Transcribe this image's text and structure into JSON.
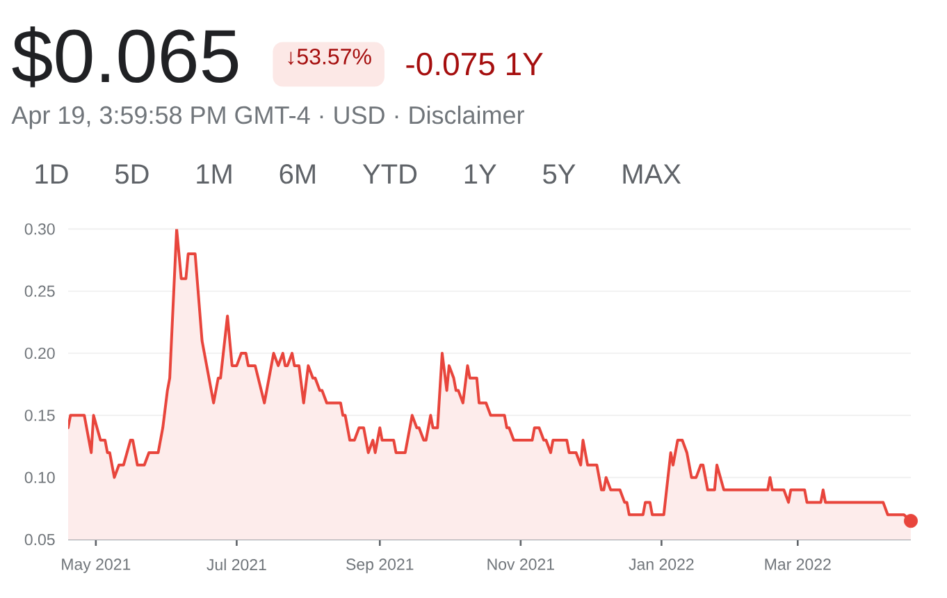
{
  "chart_data": {
    "type": "area",
    "title": "$0.065",
    "subtitle": "Apr 19, 3:59:58 PM GMT-4 · USD · Disclaimer",
    "annotations": [
      "↓53.57%",
      "-0.075 1Y",
      "1D",
      "5D",
      "1M",
      "6M",
      "YTD",
      "1Y",
      "5Y",
      "MAX"
    ],
    "xlim": [
      "2021-04-19",
      "2022-04-19"
    ],
    "xticks": [
      {
        "value": "2021-05-01",
        "label": "May 2021"
      },
      {
        "value": "2021-07-01",
        "label": "Jul 2021"
      },
      {
        "value": "2021-09-01",
        "label": "Sep 2021"
      },
      {
        "value": "2021-11-01",
        "label": "Nov 2021"
      },
      {
        "value": "2022-01-01",
        "label": "Jan 2022"
      },
      {
        "value": "2022-03-01",
        "label": "Mar 2022"
      }
    ],
    "ylim": [
      0.05,
      0.3
    ],
    "yticks": [
      0.05,
      {
        "value": 0.1,
        "label": "0.10"
      },
      0.15,
      {
        "value": 0.2,
        "label": "0.20"
      },
      0.25,
      {
        "value": 0.3,
        "label": "0.30"
      }
    ],
    "grid": "y",
    "series": [
      {
        "color": "#e8453c",
        "x": [
          "2021-04-19",
          "2021-04-20",
          "2021-04-26",
          "2021-04-29",
          "2021-04-30",
          "2021-05-03",
          "2021-05-05",
          "2021-05-06",
          "2021-05-07",
          "2021-05-09",
          "2021-05-11",
          "2021-05-13",
          "2021-05-16",
          "2021-05-17",
          "2021-05-19",
          "2021-05-22",
          "2021-05-24",
          "2021-05-28",
          "2021-05-30",
          "2021-06-01",
          "2021-06-02",
          "2021-06-05",
          "2021-06-07",
          "2021-06-09",
          "2021-06-10",
          "2021-06-13",
          "2021-06-16",
          "2021-06-18",
          "2021-06-21",
          "2021-06-23",
          "2021-06-24",
          "2021-06-27",
          "2021-06-29",
          "2021-07-01",
          "2021-07-03",
          "2021-07-05",
          "2021-07-06",
          "2021-07-09",
          "2021-07-13",
          "2021-07-17",
          "2021-07-19",
          "2021-07-21",
          "2021-07-22",
          "2021-07-23",
          "2021-07-25",
          "2021-07-26",
          "2021-07-28",
          "2021-07-30",
          "2021-08-01",
          "2021-08-03",
          "2021-08-04",
          "2021-08-06",
          "2021-08-07",
          "2021-08-09",
          "2021-08-15",
          "2021-08-16",
          "2021-08-17",
          "2021-08-19",
          "2021-08-21",
          "2021-08-23",
          "2021-08-25",
          "2021-08-27",
          "2021-08-29",
          "2021-08-30",
          "2021-09-01",
          "2021-09-02",
          "2021-09-07",
          "2021-09-08",
          "2021-09-12",
          "2021-09-15",
          "2021-09-17",
          "2021-09-18",
          "2021-09-20",
          "2021-09-21",
          "2021-09-23",
          "2021-09-24",
          "2021-09-26",
          "2021-09-28",
          "2021-09-30",
          "2021-10-01",
          "2021-10-03",
          "2021-10-04",
          "2021-10-05",
          "2021-10-07",
          "2021-10-09",
          "2021-10-10",
          "2021-10-13",
          "2021-10-14",
          "2021-10-17",
          "2021-10-19",
          "2021-10-25",
          "2021-10-26",
          "2021-10-27",
          "2021-10-29",
          "2021-11-06",
          "2021-11-07",
          "2021-11-09",
          "2021-11-11",
          "2021-11-12",
          "2021-11-14",
          "2021-11-15",
          "2021-11-21",
          "2021-11-22",
          "2021-11-25",
          "2021-11-27",
          "2021-11-28",
          "2021-11-30",
          "2021-12-04",
          "2021-12-06",
          "2021-12-07",
          "2021-12-08",
          "2021-12-10",
          "2021-12-14",
          "2021-12-16",
          "2021-12-17",
          "2021-12-18",
          "2021-12-24",
          "2021-12-25",
          "2021-12-27",
          "2021-12-28",
          "2022-01-02",
          "2022-01-05",
          "2022-01-06",
          "2022-01-08",
          "2022-01-10",
          "2022-01-12",
          "2022-01-14",
          "2022-01-16",
          "2022-01-18",
          "2022-01-19",
          "2022-01-21",
          "2022-01-24",
          "2022-01-25",
          "2022-01-28",
          "2022-02-16",
          "2022-02-17",
          "2022-02-18",
          "2022-02-23",
          "2022-02-25",
          "2022-02-26",
          "2022-03-04",
          "2022-03-05",
          "2022-03-11",
          "2022-03-12",
          "2022-03-13",
          "2022-04-07",
          "2022-04-09",
          "2022-04-16",
          "2022-04-19"
        ],
        "values": [
          0.14,
          0.15,
          0.15,
          0.12,
          0.15,
          0.13,
          0.13,
          0.12,
          0.12,
          0.1,
          0.11,
          0.11,
          0.13,
          0.13,
          0.11,
          0.11,
          0.12,
          0.12,
          0.14,
          0.17,
          0.18,
          0.3,
          0.26,
          0.26,
          0.28,
          0.28,
          0.21,
          0.19,
          0.16,
          0.18,
          0.18,
          0.23,
          0.19,
          0.19,
          0.2,
          0.2,
          0.19,
          0.19,
          0.16,
          0.2,
          0.19,
          0.2,
          0.19,
          0.19,
          0.2,
          0.19,
          0.19,
          0.16,
          0.19,
          0.18,
          0.18,
          0.17,
          0.17,
          0.16,
          0.16,
          0.15,
          0.15,
          0.13,
          0.13,
          0.14,
          0.14,
          0.12,
          0.13,
          0.12,
          0.14,
          0.13,
          0.13,
          0.12,
          0.12,
          0.15,
          0.14,
          0.14,
          0.13,
          0.13,
          0.15,
          0.14,
          0.14,
          0.2,
          0.17,
          0.19,
          0.18,
          0.17,
          0.17,
          0.16,
          0.19,
          0.18,
          0.18,
          0.16,
          0.16,
          0.15,
          0.15,
          0.14,
          0.14,
          0.13,
          0.13,
          0.14,
          0.14,
          0.13,
          0.13,
          0.12,
          0.13,
          0.13,
          0.12,
          0.12,
          0.11,
          0.13,
          0.11,
          0.11,
          0.09,
          0.09,
          0.1,
          0.09,
          0.09,
          0.08,
          0.08,
          0.07,
          0.07,
          0.08,
          0.08,
          0.07,
          0.07,
          0.12,
          0.11,
          0.13,
          0.13,
          0.12,
          0.1,
          0.1,
          0.11,
          0.11,
          0.09,
          0.09,
          0.11,
          0.09,
          0.09,
          0.1,
          0.09,
          0.09,
          0.08,
          0.09,
          0.09,
          0.08,
          0.08,
          0.09,
          0.08,
          0.08,
          0.07,
          0.07,
          0.065
        ]
      },
      {
        "type": "scatter",
        "marker": "circle",
        "color": "#e8453c",
        "x": [
          "2022-04-19"
        ],
        "values": [
          0.065
        ]
      }
    ]
  }
}
